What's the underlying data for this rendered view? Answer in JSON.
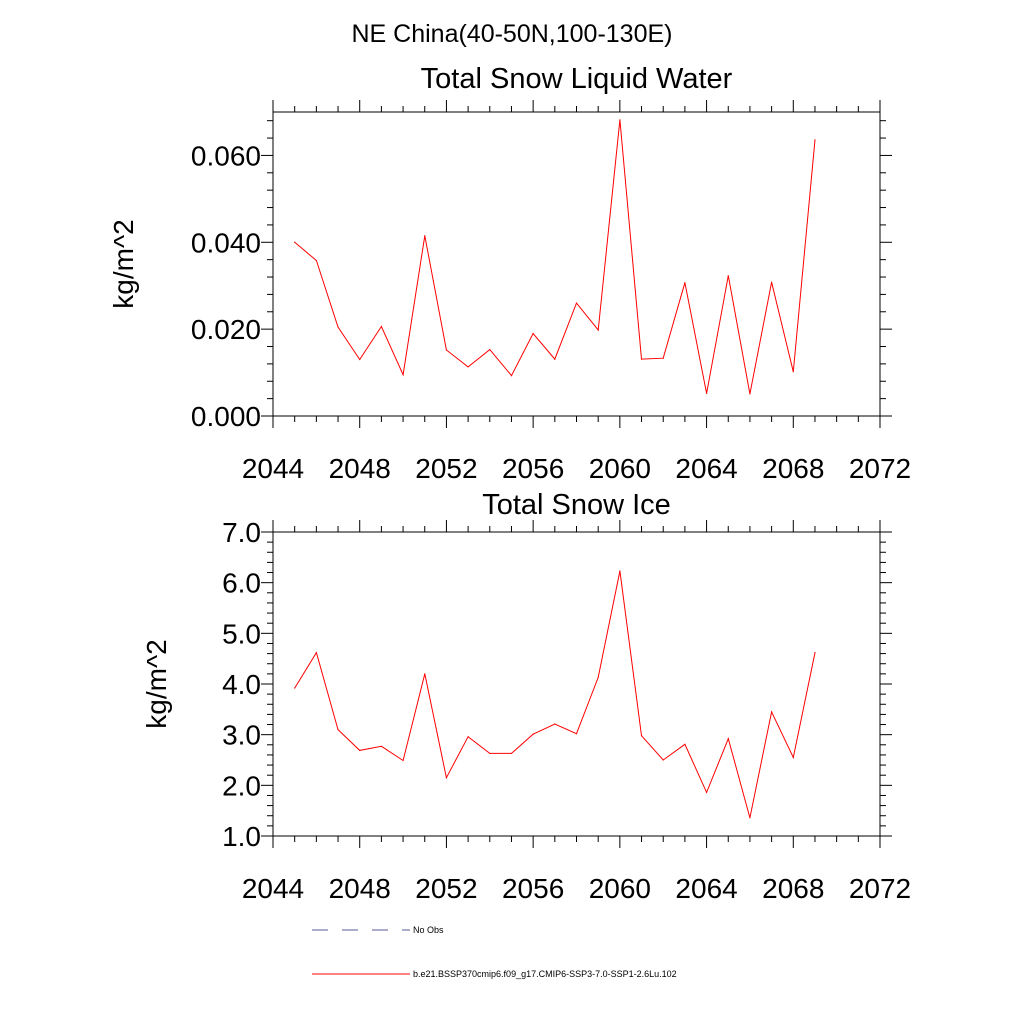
{
  "figure": {
    "suptitle": "NE China(40-50N,100-130E)"
  },
  "legend": {
    "items": [
      {
        "label": "No Obs",
        "color": "#5a5a9a",
        "style": "dashed"
      },
      {
        "label": "b.e21.BSSP370cmip6.f09_g17.CMIP6-SSP3-7.0-SSP1-2.6Lu.102",
        "color": "#ff0000",
        "style": "solid"
      }
    ]
  },
  "chart_data": [
    {
      "type": "line",
      "title": "Total Snow Liquid Water",
      "ylabel": "kg/m^2",
      "xlabel": "",
      "xlim": [
        2044,
        2072
      ],
      "ylim": [
        0.0,
        0.07
      ],
      "x_ticks": [
        "2044",
        "2048",
        "2052",
        "2056",
        "2060",
        "2064",
        "2068",
        "2072"
      ],
      "y_ticks": [
        "0.000",
        "0.020",
        "0.040",
        "0.060"
      ],
      "grid": false,
      "series": [
        {
          "name": "b.e21.BSSP370cmip6.f09_g17.CMIP6-SSP3-7.0-SSP1-2.6Lu.102",
          "color": "#ff0000",
          "x": [
            2045,
            2046,
            2047,
            2048,
            2049,
            2050,
            2051,
            2052,
            2053,
            2054,
            2055,
            2056,
            2057,
            2058,
            2059,
            2060,
            2061,
            2062,
            2063,
            2064,
            2065,
            2066,
            2067,
            2068,
            2069
          ],
          "values": [
            0.04,
            0.0358,
            0.0205,
            0.013,
            0.0206,
            0.0095,
            0.0415,
            0.0152,
            0.0113,
            0.0153,
            0.0093,
            0.019,
            0.0131,
            0.026,
            0.0198,
            0.0682,
            0.0131,
            0.0133,
            0.0307,
            0.0052,
            0.0323,
            0.0051,
            0.0308,
            0.0102,
            0.0636
          ]
        }
      ]
    },
    {
      "type": "line",
      "title": "Total Snow Ice",
      "ylabel": "kg/m^2",
      "xlabel": "",
      "xlim": [
        2044,
        2072
      ],
      "ylim": [
        1.0,
        7.0
      ],
      "x_ticks": [
        "2044",
        "2048",
        "2052",
        "2056",
        "2060",
        "2064",
        "2068",
        "2072"
      ],
      "y_ticks": [
        "1.0",
        "2.0",
        "3.0",
        "4.0",
        "5.0",
        "6.0",
        "7.0"
      ],
      "grid": false,
      "series": [
        {
          "name": "b.e21.BSSP370cmip6.f09_g17.CMIP6-SSP3-7.0-SSP1-2.6Lu.102",
          "color": "#ff0000",
          "x": [
            2045,
            2046,
            2047,
            2048,
            2049,
            2050,
            2051,
            2052,
            2053,
            2054,
            2055,
            2056,
            2057,
            2058,
            2059,
            2060,
            2061,
            2062,
            2063,
            2064,
            2065,
            2066,
            2067,
            2068,
            2069
          ],
          "values": [
            3.92,
            4.62,
            3.1,
            2.69,
            2.77,
            2.49,
            4.2,
            2.15,
            2.96,
            2.63,
            2.63,
            3.01,
            3.21,
            3.02,
            4.13,
            6.23,
            2.98,
            2.5,
            2.81,
            1.86,
            2.92,
            1.36,
            3.45,
            2.55,
            4.62
          ]
        }
      ]
    }
  ]
}
